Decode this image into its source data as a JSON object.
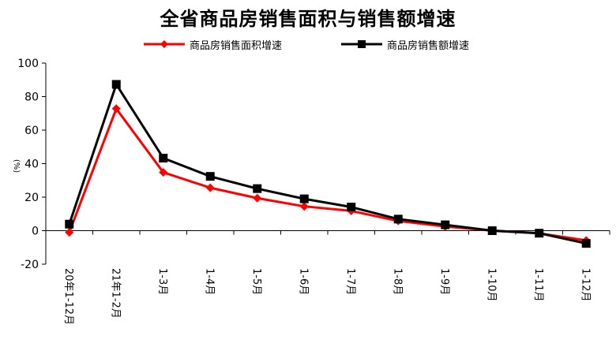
{
  "chart_data": {
    "type": "line",
    "title": "全省商品房销售面积与销售额增速",
    "ylabel": "(%)",
    "ylim": [
      -20,
      100
    ],
    "yticks": [
      -20,
      0,
      20,
      40,
      60,
      80,
      100
    ],
    "categories": [
      "20年1-12月",
      "21年1-2月",
      "1-3月",
      "1-4月",
      "1-5月",
      "1-6月",
      "1-7月",
      "1-8月",
      "1-9月",
      "1-10月",
      "1-11月",
      "1-12月"
    ],
    "series": [
      {
        "name": "商品房销售面积增速",
        "color": "#ff0000",
        "marker": "diamond",
        "values": [
          -1.0,
          72.8,
          34.8,
          25.6,
          19.4,
          14.5,
          11.8,
          5.8,
          2.5,
          0.0,
          -1.6,
          -5.8
        ]
      },
      {
        "name": "商品房销售额增速",
        "color": "#000000",
        "marker": "square",
        "values": [
          3.9,
          87.3,
          43.3,
          32.4,
          25.1,
          19.0,
          14.1,
          6.9,
          3.5,
          0.0,
          -1.5,
          -7.6
        ]
      }
    ],
    "grid": false,
    "legend": "top"
  }
}
